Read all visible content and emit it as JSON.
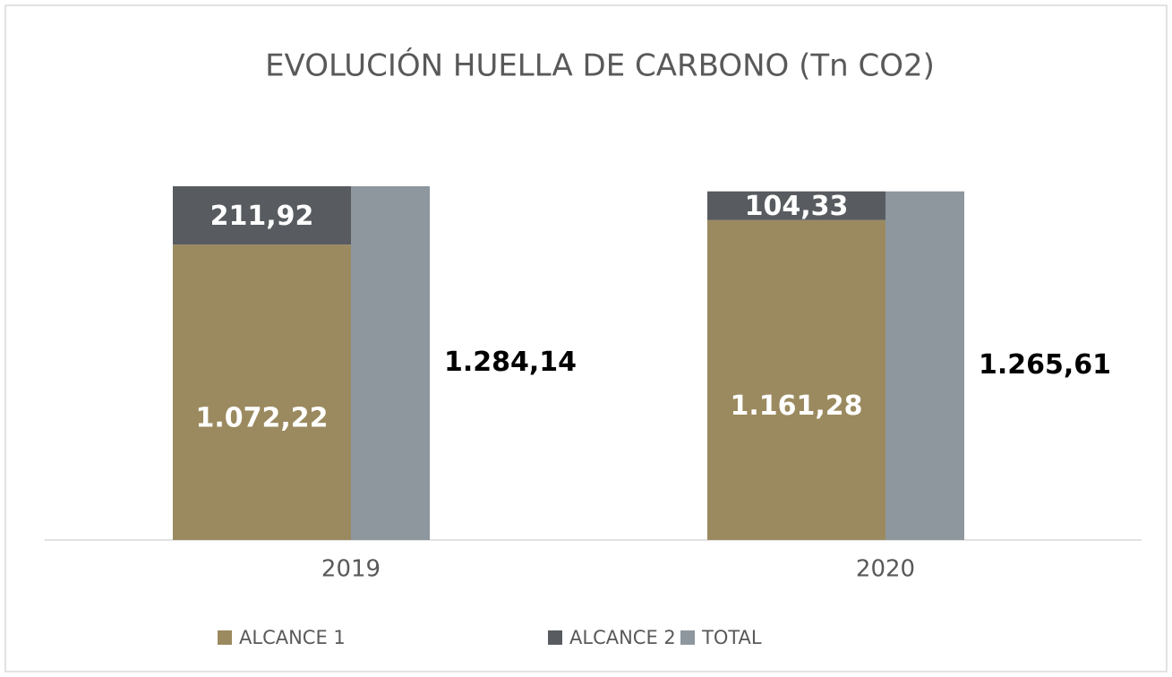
{
  "chart_data": {
    "type": "bar",
    "title": "EVOLUCIÓN HUELLA DE CARBONO (Tn CO2)",
    "categories": [
      "2019",
      "2020"
    ],
    "series": [
      {
        "name": "ALCANCE 1",
        "color": "#9b8a5f",
        "values": [
          1072.22,
          1161.28
        ],
        "value_labels": [
          "1.072,22",
          "1.161,28"
        ]
      },
      {
        "name": "ALCANCE 2",
        "color": "#585c60",
        "values": [
          211.92,
          104.33
        ],
        "value_labels": [
          "211,92",
          "104,33"
        ]
      },
      {
        "name": "TOTAL",
        "color": "#8d979d",
        "values": [
          1284.14,
          1265.61
        ],
        "value_labels": [
          "1.284,14",
          "1.265,61"
        ]
      }
    ]
  }
}
